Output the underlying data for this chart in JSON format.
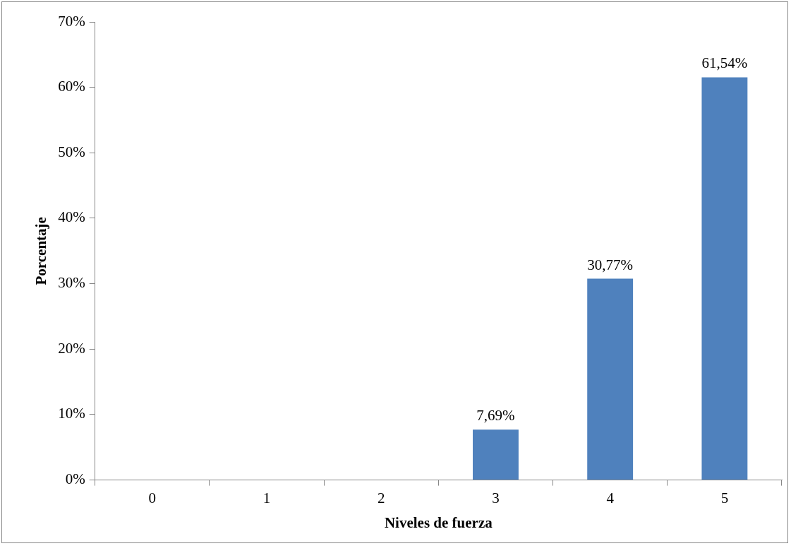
{
  "chart_data": {
    "type": "bar",
    "xlabel": "Niveles de fuerza",
    "ylabel": "Porcentaje",
    "categories": [
      "0",
      "1",
      "2",
      "3",
      "4",
      "5"
    ],
    "values": [
      0,
      0,
      0,
      7.69,
      30.77,
      61.54
    ],
    "value_labels": [
      null,
      null,
      null,
      "7,69%",
      "30,77%",
      "61,54%"
    ],
    "color": "#4f81bd",
    "ylim": [
      0,
      70
    ],
    "yticks": [
      {
        "value": 0,
        "label": "0%"
      },
      {
        "value": 10,
        "label": "10%"
      },
      {
        "value": 20,
        "label": "20%"
      },
      {
        "value": 30,
        "label": "30%"
      },
      {
        "value": 40,
        "label": "40%"
      },
      {
        "value": 50,
        "label": "50%"
      },
      {
        "value": 60,
        "label": "60%"
      },
      {
        "value": 70,
        "label": "70%"
      }
    ],
    "grid": false,
    "legend": false
  }
}
